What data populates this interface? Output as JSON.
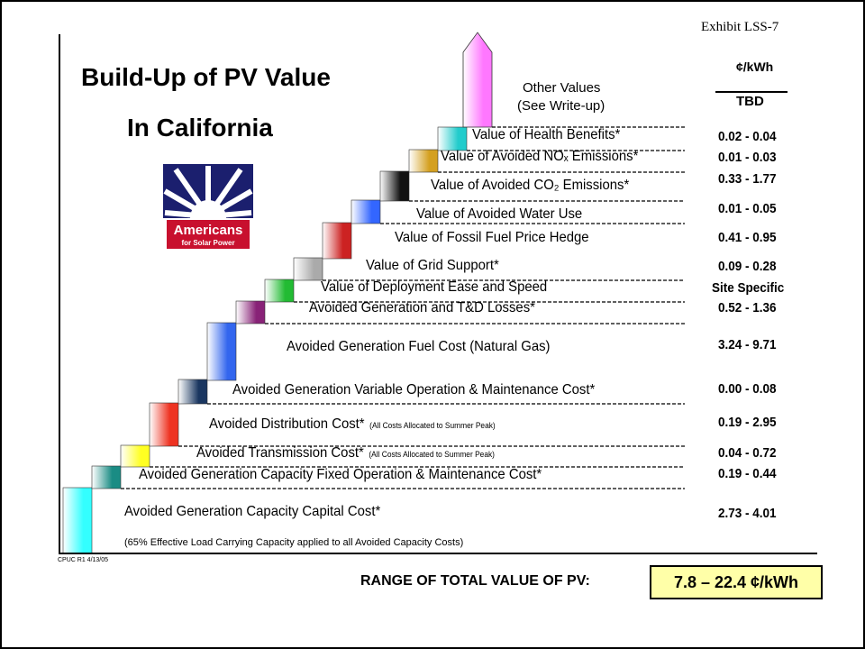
{
  "exhibit": "Exhibit LSS-7",
  "title_line1": "Build-Up of PV Value",
  "title_line2": "In California",
  "logo": {
    "line1": "Americans",
    "line2": "for Solar Power",
    "colors": {
      "navy": "#1b1f6e",
      "red": "#c8102e"
    }
  },
  "unit_header": "¢/kWh",
  "other_values": {
    "line1": "Other Values",
    "line2": "(See Write-up)",
    "value": "TBD"
  },
  "footnote_source": "CPUC R1 4/13/05",
  "footnote": "(65% Effective Load Carrying Capacity applied to all Avoided Capacity Costs)",
  "range_label": "RANGE OF TOTAL VALUE OF PV:",
  "range_value": "7.8 – 22.4 ¢/kWh",
  "chart_data": {
    "type": "bar",
    "title": "Build-Up of PV Value In California",
    "ylabel": "¢/kWh",
    "categories": [
      "Avoided Generation Capacity Capital Cost*",
      "Avoided Generation Capacity Fixed Operation & Maintenance Cost*",
      "Avoided Transmission Cost*",
      "Avoided Distribution Cost*",
      "Avoided Generation Variable Operation & Maintenance Cost*",
      "Avoided Generation Fuel Cost (Natural Gas)",
      "Avoided Generation and T&D Losses*",
      "Value of Deployment Ease and Speed",
      "Value of Grid Support*",
      "Value of Fossil Fuel Price Hedge",
      "Value of Avoided Water Use",
      "Value of Avoided CO2 Emissions*",
      "Value of Avoided NOx Emissions*",
      "Value of Health Benefits*",
      "Other Values (See Write-up)"
    ],
    "steps": [
      {
        "label": "Avoided Generation Capacity Capital Cost*",
        "sub": "",
        "range": "2.73 - 4.01",
        "low": 2.73,
        "high": 4.01,
        "color": "#33ffff"
      },
      {
        "label": "Avoided Generation Capacity Fixed Operation & Maintenance Cost*",
        "sub": "",
        "range": "0.19 - 0.44",
        "low": 0.19,
        "high": 0.44,
        "color": "#1a8c84"
      },
      {
        "label": "Avoided Transmission Cost*",
        "sub": "(All Costs Allocated to Summer Peak)",
        "range": "0.04 - 0.72",
        "low": 0.04,
        "high": 0.72,
        "color": "#ffff22"
      },
      {
        "label": "Avoided Distribution Cost*",
        "sub": "(All Costs Allocated to Summer Peak)",
        "range": "0.19 - 2.95",
        "low": 0.19,
        "high": 2.95,
        "color": "#ee3322"
      },
      {
        "label": "Avoided Generation Variable Operation & Maintenance Cost*",
        "sub": "",
        "range": "0.00 - 0.08",
        "low": 0.0,
        "high": 0.08,
        "color": "#1a3660"
      },
      {
        "label": "Avoided Generation Fuel Cost (Natural Gas)",
        "sub": "",
        "range": "3.24 - 9.71",
        "low": 3.24,
        "high": 9.71,
        "color": "#3366ee"
      },
      {
        "label": "Avoided Generation and T&D Losses*",
        "sub": "",
        "range": "0.52 - 1.36",
        "low": 0.52,
        "high": 1.36,
        "color": "#882277"
      },
      {
        "label": "Value of Deployment Ease and Speed",
        "sub": "",
        "range": "Site Specific",
        "low": null,
        "high": null,
        "color": "#22bb33"
      },
      {
        "label": "Value of Grid Support*",
        "sub": "",
        "range": "0.09 - 0.28",
        "low": 0.09,
        "high": 0.28,
        "color": "#aaaaaa"
      },
      {
        "label": "Value of Fossil Fuel Price Hedge",
        "sub": "",
        "range": "0.41 - 0.95",
        "low": 0.41,
        "high": 0.95,
        "color": "#cc2222"
      },
      {
        "label": "Value of Avoided Water Use",
        "sub": "",
        "range": "0.01 - 0.05",
        "low": 0.01,
        "high": 0.05,
        "color": "#3366ff"
      },
      {
        "label": "Value of Avoided CO₂ Emissions*",
        "sub": "",
        "range": "0.33 - 1.77",
        "low": 0.33,
        "high": 1.77,
        "color": "#111111"
      },
      {
        "label": "Value of Avoided NOₓ Emissions*",
        "sub": "",
        "range": "0.01 - 0.03",
        "low": 0.01,
        "high": 0.03,
        "color": "#d4a020"
      },
      {
        "label": "Value of Health Benefits*",
        "sub": "",
        "range": "0.02 - 0.04",
        "low": 0.02,
        "high": 0.04,
        "color": "#22cccc"
      },
      {
        "label": "Other Values (See Write-up)",
        "sub": "",
        "range": "TBD",
        "low": null,
        "high": null,
        "color": "#ff77ff"
      }
    ],
    "total_range": [
      7.8,
      22.4
    ],
    "total_range_text": "7.8 – 22.4 ¢/kWh"
  }
}
